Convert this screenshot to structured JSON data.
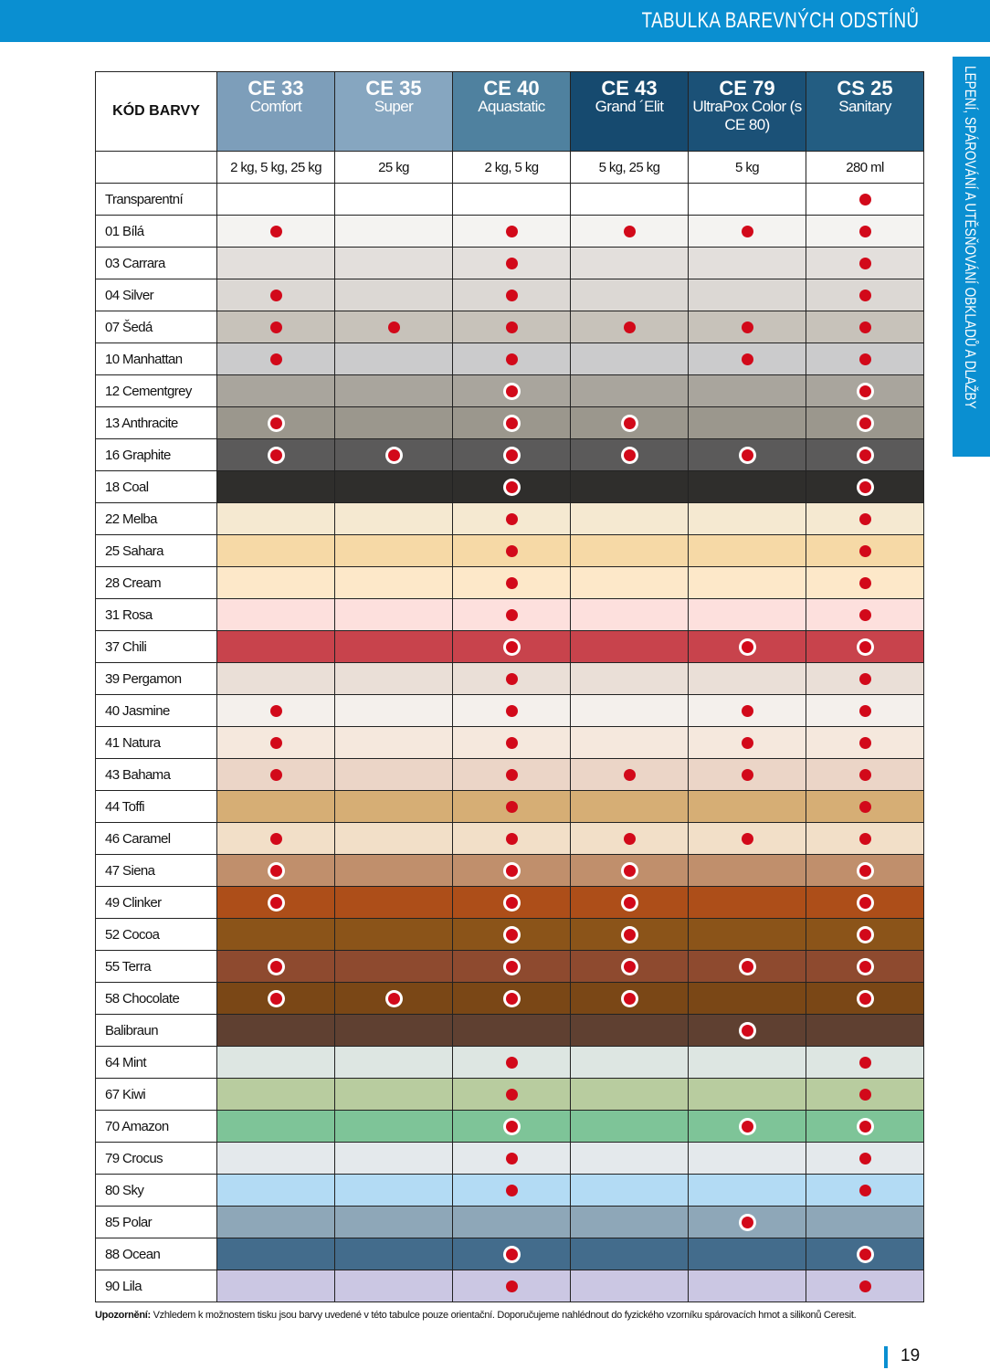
{
  "header": {
    "title": "TABULKA BAREVNÝCH ODSTÍNŮ",
    "side_tab": "LEPENÍ, SPÁROVÁNÍ A UTĚSŇOVÁNÍ OBKLADŮ A DLAŽBY"
  },
  "table": {
    "corner": "KÓD BARVY",
    "products": [
      {
        "code": "CE 33",
        "name": "Comfort",
        "sizes": "2 kg, 5 kg, 25 kg",
        "color": "#7d9eba"
      },
      {
        "code": "CE 35",
        "name": "Super",
        "sizes": "25 kg",
        "color": "#86a6c0"
      },
      {
        "code": "CE 40",
        "name": "Aquastatic",
        "sizes": "2 kg, 5 kg",
        "color": "#4f819f"
      },
      {
        "code": "CE 43",
        "name": "Grand ´Elit",
        "sizes": "5 kg, 25 kg",
        "color": "#164a6f"
      },
      {
        "code": "CE 79",
        "name": "UltraPox Color (s CE 80)",
        "sizes": "5 kg",
        "color": "#1b5177"
      },
      {
        "code": "CS 25",
        "name": "Sanitary",
        "sizes": "280 ml",
        "color": "#235d82"
      }
    ],
    "rows": [
      {
        "name": "Transparentní",
        "color": "#ffffff",
        "available": [
          false,
          false,
          false,
          false,
          false,
          true
        ]
      },
      {
        "name": "01 Bílá",
        "color": "#f4f3f1",
        "available": [
          true,
          false,
          true,
          true,
          true,
          true
        ]
      },
      {
        "name": "03 Carrara",
        "color": "#e3dfdc",
        "available": [
          false,
          false,
          true,
          false,
          false,
          true
        ]
      },
      {
        "name": "04 Silver",
        "color": "#dcd8d4",
        "available": [
          true,
          false,
          true,
          false,
          false,
          true
        ]
      },
      {
        "name": "07 Šedá",
        "color": "#c7c2ba",
        "available": [
          true,
          true,
          true,
          true,
          true,
          true
        ]
      },
      {
        "name": "10 Manhattan",
        "color": "#cbcbcc",
        "available": [
          true,
          false,
          true,
          false,
          true,
          true
        ]
      },
      {
        "name": "12 Cementgrey",
        "color": "#a9a59d",
        "available": [
          false,
          false,
          true,
          false,
          false,
          true
        ]
      },
      {
        "name": "13 Anthracite",
        "color": "#9b978d",
        "available": [
          true,
          false,
          true,
          true,
          false,
          true
        ]
      },
      {
        "name": "16 Graphite",
        "color": "#5b5a5a",
        "available": [
          true,
          true,
          true,
          true,
          true,
          true
        ]
      },
      {
        "name": "18 Coal",
        "color": "#2f2e2c",
        "available": [
          false,
          false,
          true,
          false,
          false,
          true
        ]
      },
      {
        "name": "22 Melba",
        "color": "#f5e9d1",
        "available": [
          false,
          false,
          true,
          false,
          false,
          true
        ]
      },
      {
        "name": "25 Sahara",
        "color": "#f6d9a6",
        "available": [
          false,
          false,
          true,
          false,
          false,
          true
        ]
      },
      {
        "name": "28 Cream",
        "color": "#fde8c9",
        "available": [
          false,
          false,
          true,
          false,
          false,
          true
        ]
      },
      {
        "name": "31 Rosa",
        "color": "#fde0dd",
        "available": [
          false,
          false,
          true,
          false,
          false,
          true
        ]
      },
      {
        "name": "37 Chili",
        "color": "#c8434c",
        "available": [
          false,
          false,
          true,
          false,
          true,
          true
        ]
      },
      {
        "name": "39 Pergamon",
        "color": "#eadfd7",
        "available": [
          false,
          false,
          true,
          false,
          false,
          true
        ]
      },
      {
        "name": "40 Jasmine",
        "color": "#f4f0ec",
        "available": [
          true,
          false,
          true,
          false,
          true,
          true
        ]
      },
      {
        "name": "41 Natura",
        "color": "#f5e8dd",
        "available": [
          true,
          false,
          true,
          false,
          true,
          true
        ]
      },
      {
        "name": "43 Bahama",
        "color": "#ebd5c7",
        "available": [
          true,
          false,
          true,
          true,
          true,
          true
        ]
      },
      {
        "name": "44 Toffi",
        "color": "#d6ae75",
        "available": [
          false,
          false,
          true,
          false,
          false,
          true
        ]
      },
      {
        "name": "46 Caramel",
        "color": "#f2dfc8",
        "available": [
          true,
          false,
          true,
          true,
          true,
          true
        ]
      },
      {
        "name": "47 Siena",
        "color": "#c08f6c",
        "available": [
          true,
          false,
          true,
          true,
          false,
          true
        ]
      },
      {
        "name": "49 Clinker",
        "color": "#ad4e19",
        "available": [
          true,
          false,
          true,
          true,
          false,
          true
        ]
      },
      {
        "name": "52 Cocoa",
        "color": "#8b5419",
        "available": [
          false,
          false,
          true,
          true,
          false,
          true
        ]
      },
      {
        "name": "55 Terra",
        "color": "#8e4a2f",
        "available": [
          true,
          false,
          true,
          true,
          true,
          true
        ]
      },
      {
        "name": "58 Chocolate",
        "color": "#7a4716",
        "available": [
          true,
          true,
          true,
          true,
          false,
          true
        ]
      },
      {
        "name": "Balibraun",
        "color": "#5f4031",
        "available": [
          false,
          false,
          false,
          false,
          true,
          false
        ]
      },
      {
        "name": "64 Mint",
        "color": "#dde6e2",
        "available": [
          false,
          false,
          true,
          false,
          false,
          true
        ]
      },
      {
        "name": "67 Kiwi",
        "color": "#b8cc9f",
        "available": [
          false,
          false,
          true,
          false,
          false,
          true
        ]
      },
      {
        "name": "70 Amazon",
        "color": "#7ec498",
        "available": [
          false,
          false,
          true,
          false,
          true,
          true
        ]
      },
      {
        "name": "79 Crocus",
        "color": "#e4e9ec",
        "available": [
          false,
          false,
          true,
          false,
          false,
          true
        ]
      },
      {
        "name": "80 Sky",
        "color": "#b3dbf4",
        "available": [
          false,
          false,
          true,
          false,
          false,
          true
        ]
      },
      {
        "name": "85 Polar",
        "color": "#8ea7b8",
        "available": [
          false,
          false,
          false,
          false,
          true,
          false
        ]
      },
      {
        "name": "88 Ocean",
        "color": "#436c8c",
        "available": [
          false,
          false,
          true,
          false,
          false,
          true
        ]
      },
      {
        "name": "90 Lila",
        "color": "#cbc7e3",
        "available": [
          false,
          false,
          true,
          false,
          false,
          true
        ]
      }
    ]
  },
  "note": {
    "label": "Upozornění:",
    "text": "Vzhledem k možnostem tisku jsou barvy uvedené v této tabulce pouze orientační. Doporučujeme nahlédnout do fyzického vzorníku spárovacích hmot a silikonů Ceresit."
  },
  "page_number": "19"
}
